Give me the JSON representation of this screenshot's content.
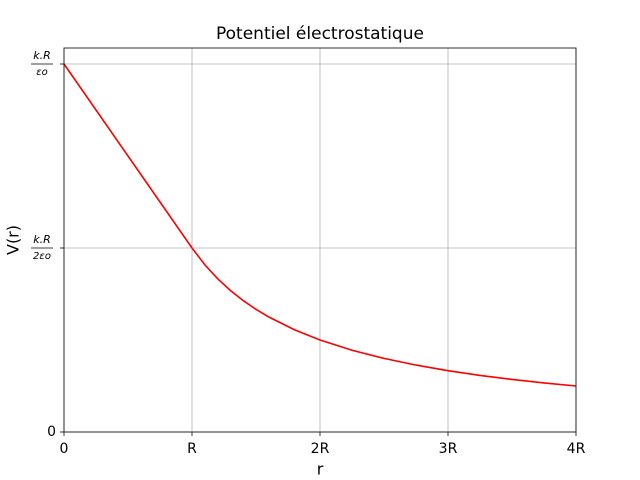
{
  "chart_data": {
    "type": "line",
    "title": "Potentiel électrostatique",
    "xlabel": "r",
    "ylabel": "V(r)",
    "x": [
      0,
      0.25,
      0.5,
      0.75,
      1,
      1.1,
      1.2,
      1.3,
      1.4,
      1.5,
      1.6,
      1.8,
      2,
      2.25,
      2.5,
      2.75,
      3,
      3.25,
      3.5,
      3.75,
      4
    ],
    "series": [
      {
        "color": "#ff0000",
        "values": [
          1,
          0.875,
          0.75,
          0.625,
          0.5,
          0.4545,
          0.4167,
          0.3846,
          0.3571,
          0.3333,
          0.3125,
          0.2778,
          0.25,
          0.2222,
          0.2,
          0.1818,
          0.1667,
          0.1538,
          0.1429,
          0.1333,
          0.125
        ]
      }
    ],
    "xlim": [
      0,
      4
    ],
    "ylim": [
      0,
      1.0435
    ],
    "xticks": [
      0,
      {
        "value": 1,
        "label": "R"
      },
      {
        "value": 2,
        "label": "2R"
      },
      {
        "value": 3,
        "label": "3R"
      },
      {
        "value": 4,
        "label": "4R"
      }
    ],
    "yticks": [
      0,
      {
        "value": 0.5,
        "label": {
          "num": "k.R",
          "den": "2εo"
        }
      },
      {
        "value": 1,
        "label": {
          "num": "k.R",
          "den": "εo"
        }
      }
    ],
    "grid": true
  }
}
